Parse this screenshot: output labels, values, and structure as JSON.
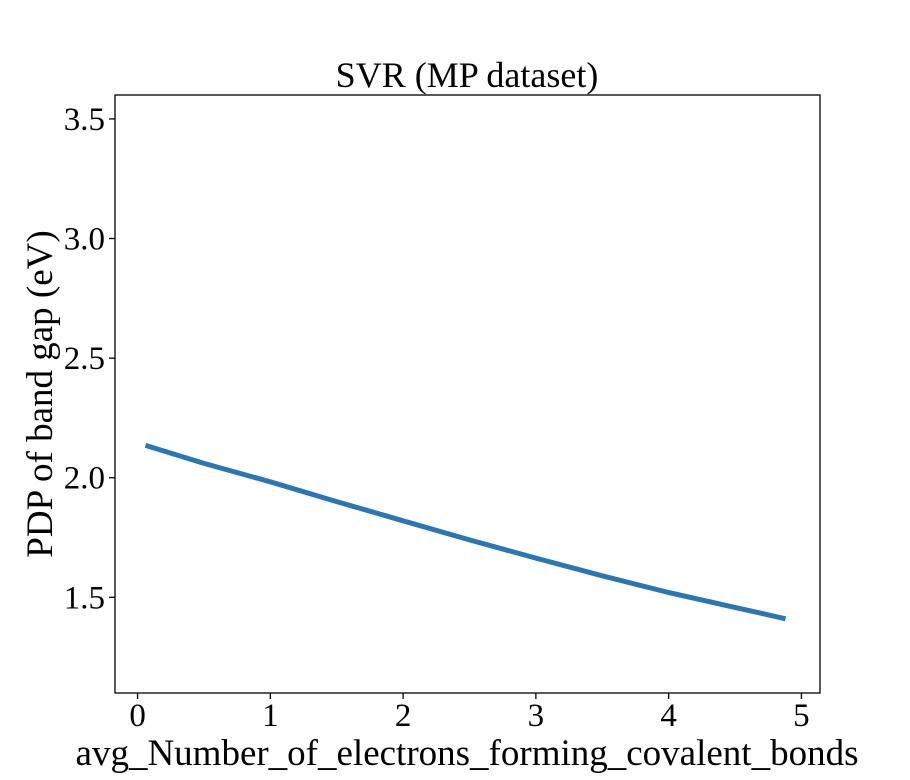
{
  "chart_data": {
    "type": "line",
    "title": "SVR (MP dataset)",
    "xlabel": "avg_Number_of_electrons_forming_covalent_bonds",
    "ylabel": "PDP of band gap (eV)",
    "xlim": [
      -0.17,
      5.14
    ],
    "ylim": [
      1.1,
      3.6
    ],
    "xticks": [
      0,
      1,
      2,
      3,
      4,
      5
    ],
    "yticks": [
      1.5,
      2.0,
      2.5,
      3.0,
      3.5
    ],
    "xtick_labels": [
      "0",
      "1",
      "2",
      "3",
      "4",
      "5"
    ],
    "ytick_labels": [
      "1.5",
      "2.0",
      "2.5",
      "3.0",
      "3.5"
    ],
    "grid": false,
    "legend": "none",
    "series": [
      {
        "color": "#2a77b4",
        "x": [
          0.06,
          0.5,
          1.0,
          1.5,
          2.0,
          2.5,
          3.0,
          3.5,
          4.0,
          4.5,
          4.88
        ],
        "y": [
          2.135,
          2.06,
          1.983,
          1.9,
          1.82,
          1.74,
          1.664,
          1.59,
          1.52,
          1.458,
          1.41
        ]
      }
    ]
  }
}
